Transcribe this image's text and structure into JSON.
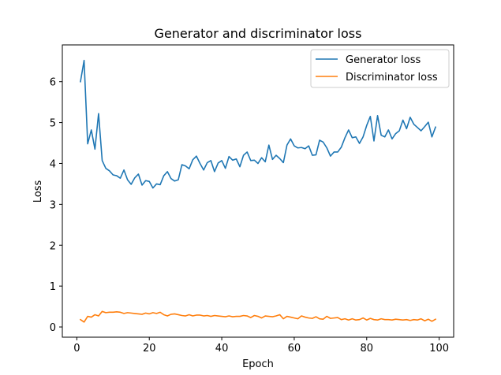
{
  "chart_data": {
    "type": "line",
    "title": "Generator and discriminator loss",
    "xlabel": "Epoch",
    "ylabel": "Loss",
    "xlim": [
      -4,
      104
    ],
    "ylim": [
      -0.25,
      6.9
    ],
    "xticks": [
      0,
      20,
      40,
      60,
      80,
      100
    ],
    "yticks": [
      0,
      1,
      2,
      3,
      4,
      5,
      6
    ],
    "grid": false,
    "legend_position": "upper right",
    "x": [
      1,
      2,
      3,
      4,
      5,
      6,
      7,
      8,
      9,
      10,
      11,
      12,
      13,
      14,
      15,
      16,
      17,
      18,
      19,
      20,
      21,
      22,
      23,
      24,
      25,
      26,
      27,
      28,
      29,
      30,
      31,
      32,
      33,
      34,
      35,
      36,
      37,
      38,
      39,
      40,
      41,
      42,
      43,
      44,
      45,
      46,
      47,
      48,
      49,
      50,
      51,
      52,
      53,
      54,
      55,
      56,
      57,
      58,
      59,
      60,
      61,
      62,
      63,
      64,
      65,
      66,
      67,
      68,
      69,
      70,
      71,
      72,
      73,
      74,
      75,
      76,
      77,
      78,
      79,
      80,
      81,
      82,
      83,
      84,
      85,
      86,
      87,
      88,
      89,
      90,
      91,
      92,
      93,
      94,
      95,
      96,
      97,
      98,
      99
    ],
    "series": [
      {
        "name": "Generator loss",
        "color": "#1f77b4",
        "values": [
          6.0,
          6.52,
          4.48,
          4.82,
          4.35,
          5.22,
          4.07,
          3.88,
          3.82,
          3.72,
          3.7,
          3.64,
          3.84,
          3.6,
          3.49,
          3.65,
          3.74,
          3.47,
          3.58,
          3.56,
          3.4,
          3.5,
          3.48,
          3.7,
          3.8,
          3.63,
          3.57,
          3.6,
          3.97,
          3.94,
          3.87,
          4.09,
          4.18,
          4.0,
          3.84,
          4.02,
          4.07,
          3.8,
          4.01,
          4.07,
          3.88,
          4.17,
          4.08,
          4.11,
          3.92,
          4.2,
          4.28,
          4.07,
          4.08,
          4.0,
          4.14,
          4.04,
          4.45,
          4.1,
          4.2,
          4.12,
          4.02,
          4.45,
          4.6,
          4.43,
          4.38,
          4.39,
          4.36,
          4.43,
          4.2,
          4.21,
          4.57,
          4.52,
          4.38,
          4.18,
          4.28,
          4.28,
          4.4,
          4.63,
          4.82,
          4.63,
          4.65,
          4.49,
          4.65,
          4.93,
          5.15,
          4.55,
          5.17,
          4.69,
          4.65,
          4.82,
          4.6,
          4.73,
          4.8,
          5.06,
          4.85,
          5.13,
          4.96,
          4.88,
          4.8,
          4.9,
          5.01,
          4.65,
          4.89
        ]
      },
      {
        "name": "Discriminator loss",
        "color": "#ff7f0e",
        "values": [
          0.18,
          0.12,
          0.26,
          0.24,
          0.3,
          0.27,
          0.38,
          0.35,
          0.36,
          0.36,
          0.37,
          0.36,
          0.33,
          0.35,
          0.34,
          0.33,
          0.32,
          0.31,
          0.34,
          0.32,
          0.35,
          0.33,
          0.36,
          0.3,
          0.27,
          0.31,
          0.32,
          0.3,
          0.28,
          0.27,
          0.3,
          0.27,
          0.29,
          0.29,
          0.27,
          0.28,
          0.26,
          0.28,
          0.27,
          0.26,
          0.25,
          0.27,
          0.25,
          0.26,
          0.26,
          0.28,
          0.27,
          0.23,
          0.28,
          0.26,
          0.22,
          0.27,
          0.26,
          0.25,
          0.27,
          0.3,
          0.2,
          0.26,
          0.24,
          0.22,
          0.2,
          0.27,
          0.24,
          0.22,
          0.21,
          0.25,
          0.2,
          0.19,
          0.26,
          0.21,
          0.22,
          0.23,
          0.18,
          0.2,
          0.17,
          0.2,
          0.17,
          0.18,
          0.22,
          0.17,
          0.21,
          0.18,
          0.17,
          0.2,
          0.18,
          0.18,
          0.17,
          0.19,
          0.18,
          0.17,
          0.18,
          0.16,
          0.18,
          0.17,
          0.2,
          0.15,
          0.19,
          0.14,
          0.19
        ]
      }
    ]
  }
}
